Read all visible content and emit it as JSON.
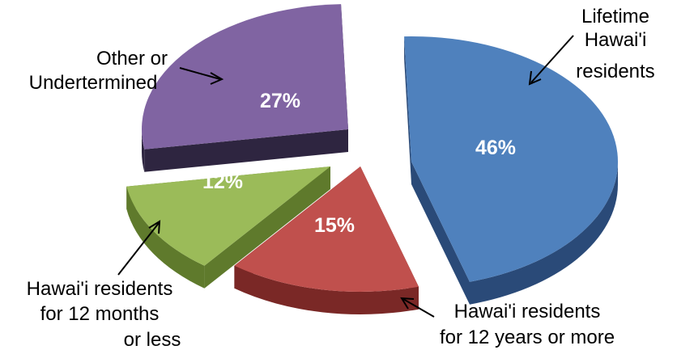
{
  "chart_data": {
    "type": "pie",
    "style": "3d-exploded",
    "title": "",
    "slices": [
      {
        "label": "Lifetime Hawai'i residents",
        "value": 46,
        "display": "46%",
        "color": "#4f81bd",
        "side_color": "#2a4a78"
      },
      {
        "label": "Hawai'i residents for 12 years or more",
        "value": 15,
        "display": "15%",
        "color": "#c0504d",
        "side_color": "#7a2826"
      },
      {
        "label": "Hawai'i residents for 12 months or less",
        "value": 12,
        "display": "12%",
        "color": "#9bbb59",
        "side_color": "#5f7a2c"
      },
      {
        "label": "Other or Undertermined",
        "value": 27,
        "display": "27%",
        "color": "#8064a2",
        "side_color": "#2e2540"
      }
    ],
    "legend": "none"
  },
  "labels": {
    "lifetime": [
      "Lifetime",
      "Hawai'i",
      "residents"
    ],
    "twelve_years": [
      "Hawai'i residents",
      "for 12 years or more"
    ],
    "twelve_months": [
      "Hawai'i residents",
      "for 12 months",
      "or less"
    ],
    "other": [
      "Other or",
      "Undertermined"
    ]
  }
}
